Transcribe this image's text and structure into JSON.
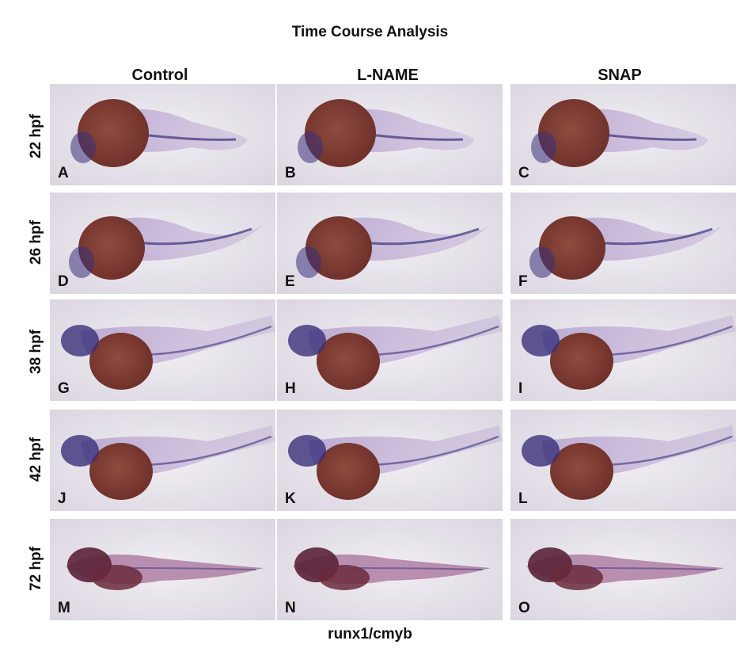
{
  "title": "Time Course Analysis",
  "columns": [
    "Control",
    "L-NAME",
    "SNAP"
  ],
  "rows": [
    "22 hpf",
    "26 hpf",
    "38 hpf",
    "42 hpf",
    "72 hpf"
  ],
  "panels": [
    "A",
    "B",
    "C",
    "D",
    "E",
    "F",
    "G",
    "H",
    "I",
    "J",
    "K",
    "L",
    "M",
    "N",
    "O"
  ],
  "footer": "runx1/cmyb",
  "colors": {
    "background": "#e6e2ea",
    "yolk": "#6e2f2a",
    "yolk_light": "#8d4c3e",
    "body_tint": "#b7a3cf",
    "stain": "#3a2f7a"
  }
}
